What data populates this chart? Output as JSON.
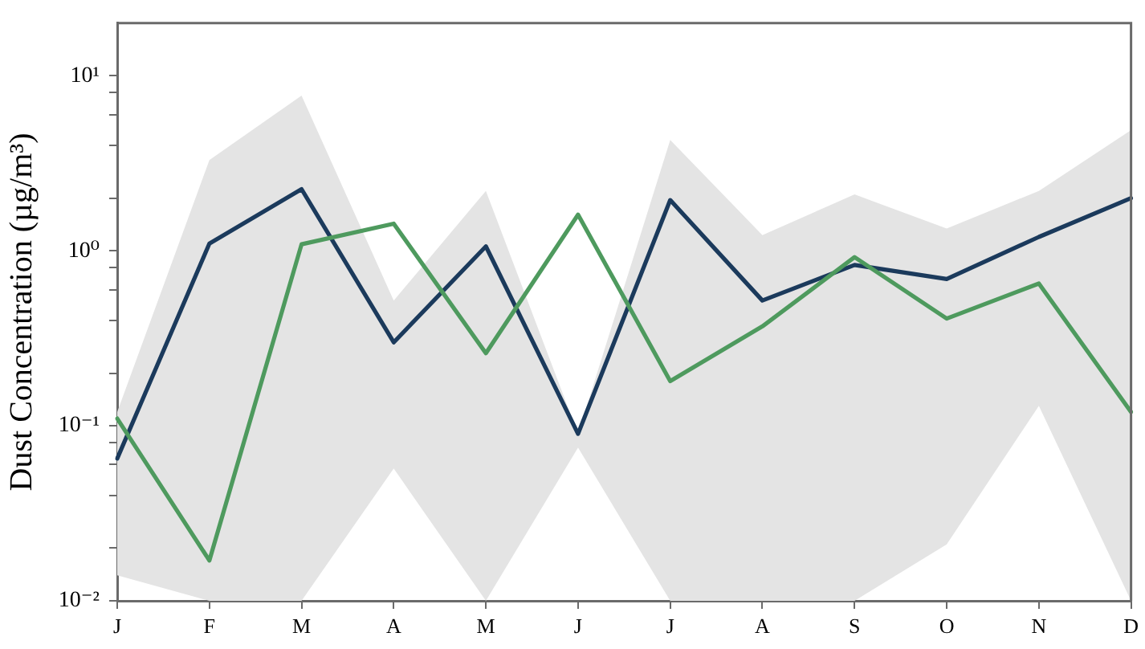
{
  "chart_data": {
    "type": "line",
    "ylabel": "Dust Concentration (µg/m³)",
    "categories": [
      "J",
      "F",
      "M",
      "A",
      "M",
      "J",
      "J",
      "A",
      "S",
      "O",
      "N",
      "D"
    ],
    "series": [
      {
        "color": "#1b3a5c",
        "values": [
          0.065,
          1.1,
          2.25,
          0.3,
          1.06,
          0.09,
          1.95,
          0.52,
          0.83,
          0.69,
          1.2,
          2.0
        ],
        "lower": [
          0.014,
          0.01,
          0.01,
          0.057,
          0.01,
          0.075,
          0.01,
          0.01,
          0.01,
          0.021,
          0.13,
          0.01
        ],
        "upper": [
          0.12,
          3.3,
          7.7,
          0.52,
          2.2,
          0.09,
          4.3,
          1.23,
          2.1,
          1.34,
          2.2,
          4.9
        ]
      },
      {
        "color": "#4e9a5e",
        "values": [
          0.11,
          0.017,
          1.09,
          1.43,
          0.26,
          1.61,
          0.18,
          0.37,
          0.92,
          0.41,
          0.65,
          0.12
        ]
      }
    ],
    "log": "y",
    "ylim": [
      0.01,
      20
    ],
    "yticks": [
      {
        "value": 0.01,
        "label": "10⁻²"
      },
      {
        "value": 0.02,
        "label": null
      },
      {
        "value": 0.04,
        "label": null
      },
      {
        "value": 0.06,
        "label": null
      },
      {
        "value": 0.08,
        "label": null
      },
      {
        "value": 0.1,
        "label": "10⁻¹"
      },
      {
        "value": 0.2,
        "label": null
      },
      {
        "value": 0.4,
        "label": null
      },
      {
        "value": 0.6,
        "label": null
      },
      {
        "value": 0.8,
        "label": null
      },
      {
        "value": 1,
        "label": "10⁰"
      },
      {
        "value": 2,
        "label": null
      },
      {
        "value": 4,
        "label": null
      },
      {
        "value": 6,
        "label": null
      },
      {
        "value": 8,
        "label": null
      },
      {
        "value": 10,
        "label": "10¹"
      }
    ],
    "grid": false,
    "legend": false,
    "marker": "none"
  }
}
